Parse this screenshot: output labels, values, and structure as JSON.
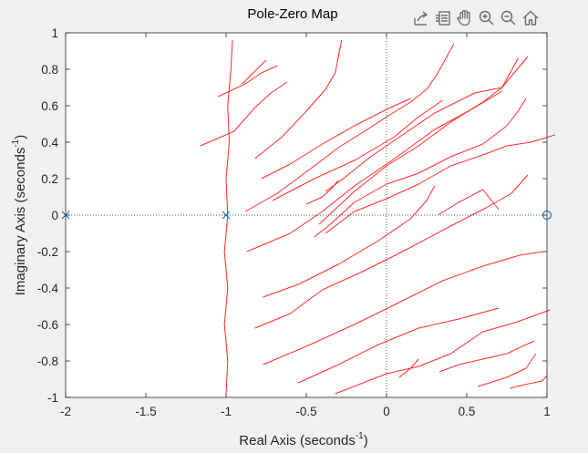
{
  "chart_data": {
    "type": "scatter",
    "title": "Pole-Zero Map",
    "xlabel": {
      "base": "Real Axis (seconds",
      "sup": "-1",
      "end": ")"
    },
    "ylabel": {
      "base": "Imaginary Axis (seconds",
      "sup": "-1",
      "end": ")"
    },
    "xlim": [
      -2,
      1
    ],
    "ylim": [
      -1,
      1
    ],
    "xticks": [
      -2,
      -1.5,
      -1,
      -0.5,
      0,
      0.5,
      1
    ],
    "yticks": [
      -1,
      -0.8,
      -0.6,
      -0.4,
      -0.2,
      0,
      0.2,
      0.4,
      0.6,
      0.8,
      1
    ],
    "xtick_labels": [
      "-2",
      "-1.5",
      "-1",
      "-0.5",
      "0",
      "0.5",
      "1"
    ],
    "ytick_labels": [
      "-1",
      "-0.8",
      "-0.6",
      "-0.4",
      "-0.2",
      "0",
      "0.2",
      "0.4",
      "0.6",
      "0.8",
      "1"
    ],
    "grid": false,
    "poles": [
      {
        "x": -2,
        "y": 0
      },
      {
        "x": -1,
        "y": 0
      }
    ],
    "zeros": [
      {
        "x": 1,
        "y": 0
      }
    ],
    "reference_lines": {
      "real_axis_y": 0,
      "imag_axis_x": 0
    },
    "overlay_curves": [
      [
        [
          -0.96,
          0.96
        ],
        [
          -0.97,
          0.8
        ],
        [
          -0.99,
          0.6
        ],
        [
          -0.98,
          0.4
        ],
        [
          -1.0,
          0.2
        ],
        [
          -0.99,
          0.0
        ],
        [
          -1.01,
          -0.2
        ],
        [
          -0.99,
          -0.4
        ],
        [
          -1.01,
          -0.6
        ],
        [
          -0.99,
          -0.8
        ],
        [
          -1.0,
          -0.98
        ]
      ],
      [
        [
          -1.16,
          0.38
        ],
        [
          -0.95,
          0.46
        ],
        [
          -0.82,
          0.59
        ],
        [
          -0.72,
          0.67
        ],
        [
          -0.62,
          0.73
        ]
      ],
      [
        [
          -1.05,
          0.65
        ],
        [
          -0.88,
          0.72
        ],
        [
          -0.78,
          0.78
        ],
        [
          -0.68,
          0.82
        ]
      ],
      [
        [
          -0.9,
          0.72
        ],
        [
          -0.82,
          0.79
        ],
        [
          -0.75,
          0.85
        ]
      ],
      [
        [
          -0.82,
          0.31
        ],
        [
          -0.65,
          0.43
        ],
        [
          -0.5,
          0.57
        ],
        [
          -0.38,
          0.69
        ],
        [
          -0.32,
          0.78
        ],
        [
          -0.28,
          0.96
        ]
      ],
      [
        [
          -0.78,
          0.2
        ],
        [
          -0.6,
          0.28
        ],
        [
          -0.4,
          0.39
        ],
        [
          -0.2,
          0.49
        ],
        [
          0.0,
          0.58
        ],
        [
          0.15,
          0.64
        ]
      ],
      [
        [
          -0.71,
          0.08
        ],
        [
          -0.45,
          0.2
        ],
        [
          -0.2,
          0.3
        ],
        [
          0.05,
          0.43
        ],
        [
          0.2,
          0.54
        ],
        [
          0.35,
          0.63
        ]
      ],
      [
        [
          -0.88,
          0.02
        ],
        [
          -0.68,
          0.12
        ],
        [
          -0.48,
          0.25
        ],
        [
          -0.3,
          0.37
        ],
        [
          -0.12,
          0.47
        ],
        [
          0.02,
          0.55
        ],
        [
          0.15,
          0.62
        ],
        [
          0.25,
          0.69
        ],
        [
          0.32,
          0.78
        ],
        [
          0.42,
          0.94
        ]
      ],
      [
        [
          -0.42,
          -0.05
        ],
        [
          -0.2,
          0.13
        ],
        [
          0.0,
          0.27
        ],
        [
          0.2,
          0.38
        ],
        [
          0.4,
          0.51
        ],
        [
          0.6,
          0.62
        ],
        [
          0.72,
          0.7
        ],
        [
          0.82,
          0.86
        ]
      ],
      [
        [
          -0.38,
          0.13
        ],
        [
          -0.27,
          0.2
        ],
        [
          -0.1,
          0.32
        ],
        [
          0.1,
          0.44
        ],
        [
          0.3,
          0.56
        ],
        [
          0.55,
          0.67
        ],
        [
          0.72,
          0.7
        ],
        [
          0.88,
          0.87
        ]
      ],
      [
        [
          -0.87,
          -0.2
        ],
        [
          -0.6,
          -0.1
        ],
        [
          -0.4,
          0.02
        ],
        [
          -0.2,
          0.16
        ],
        [
          0.05,
          0.31
        ],
        [
          0.3,
          0.47
        ],
        [
          0.55,
          0.59
        ],
        [
          0.72,
          0.68
        ]
      ],
      [
        [
          -0.45,
          -0.12
        ],
        [
          -0.35,
          -0.05
        ],
        [
          -0.2,
          0.07
        ],
        [
          0.0,
          0.17
        ],
        [
          0.2,
          0.23
        ],
        [
          0.4,
          0.32
        ],
        [
          0.6,
          0.39
        ],
        [
          0.75,
          0.49
        ],
        [
          0.82,
          0.57
        ],
        [
          0.87,
          0.64
        ]
      ],
      [
        [
          -0.38,
          -0.1
        ],
        [
          -0.2,
          0.02
        ],
        [
          0.0,
          0.09
        ],
        [
          0.2,
          0.17
        ],
        [
          0.4,
          0.27
        ],
        [
          0.6,
          0.33
        ],
        [
          0.75,
          0.38
        ],
        [
          0.9,
          0.4
        ],
        [
          1.05,
          0.44
        ]
      ],
      [
        [
          -0.5,
          0.06
        ],
        [
          -0.4,
          0.1
        ],
        [
          -0.35,
          0.14
        ],
        [
          -0.3,
          0.19
        ]
      ],
      [
        [
          0.32,
          0.0
        ],
        [
          0.45,
          0.07
        ],
        [
          0.6,
          0.14
        ],
        [
          0.7,
          0.03
        ]
      ],
      [
        [
          -0.77,
          -0.45
        ],
        [
          -0.55,
          -0.38
        ],
        [
          -0.3,
          -0.27
        ],
        [
          -0.05,
          -0.14
        ],
        [
          0.15,
          -0.02
        ],
        [
          0.25,
          0.08
        ],
        [
          0.3,
          0.16
        ]
      ],
      [
        [
          -0.82,
          -0.62
        ],
        [
          -0.6,
          -0.54
        ],
        [
          -0.4,
          -0.41
        ],
        [
          -0.15,
          -0.31
        ],
        [
          0.1,
          -0.2
        ],
        [
          0.4,
          -0.06
        ],
        [
          0.62,
          0.04
        ],
        [
          0.78,
          0.12
        ],
        [
          0.88,
          0.22
        ]
      ],
      [
        [
          -0.77,
          -0.82
        ],
        [
          -0.5,
          -0.72
        ],
        [
          -0.2,
          -0.6
        ],
        [
          0.1,
          -0.47
        ],
        [
          0.35,
          -0.36
        ],
        [
          0.6,
          -0.28
        ],
        [
          0.83,
          -0.22
        ],
        [
          0.98,
          -0.2
        ]
      ],
      [
        [
          -0.55,
          -0.92
        ],
        [
          -0.3,
          -0.82
        ],
        [
          -0.05,
          -0.71
        ],
        [
          0.2,
          -0.62
        ],
        [
          0.45,
          -0.57
        ],
        [
          0.7,
          -0.51
        ]
      ],
      [
        [
          -0.32,
          -0.98
        ],
        [
          0.0,
          -0.87
        ],
        [
          0.2,
          -0.83
        ],
        [
          0.4,
          -0.76
        ],
        [
          0.6,
          -0.64
        ],
        [
          0.8,
          -0.59
        ],
        [
          1.02,
          -0.52
        ]
      ],
      [
        [
          0.33,
          -0.86
        ],
        [
          0.45,
          -0.82
        ],
        [
          0.6,
          -0.79
        ],
        [
          0.75,
          -0.76
        ],
        [
          0.92,
          -0.69
        ]
      ],
      [
        [
          0.57,
          -0.94
        ],
        [
          0.75,
          -0.89
        ],
        [
          0.87,
          -0.84
        ],
        [
          0.93,
          -0.76
        ]
      ],
      [
        [
          0.77,
          -0.95
        ],
        [
          0.86,
          -0.93
        ],
        [
          0.97,
          -0.91
        ],
        [
          1.0,
          -0.88
        ]
      ],
      [
        [
          0.08,
          -0.89
        ],
        [
          0.15,
          -0.84
        ],
        [
          0.2,
          -0.79
        ]
      ]
    ],
    "colors": {
      "marker": "#0072bd",
      "overlay": "#ff2a2a",
      "axes": "#262626",
      "reference": "#555555"
    }
  },
  "toolbar": {
    "buttons": [
      {
        "name": "export-button",
        "icon": "export-icon"
      },
      {
        "name": "brush-button",
        "icon": "brush-icon"
      },
      {
        "name": "pan-button",
        "icon": "hand-icon"
      },
      {
        "name": "zoom-in-button",
        "icon": "zoom-in-icon"
      },
      {
        "name": "zoom-out-button",
        "icon": "zoom-out-icon"
      },
      {
        "name": "home-button",
        "icon": "home-icon"
      }
    ]
  }
}
